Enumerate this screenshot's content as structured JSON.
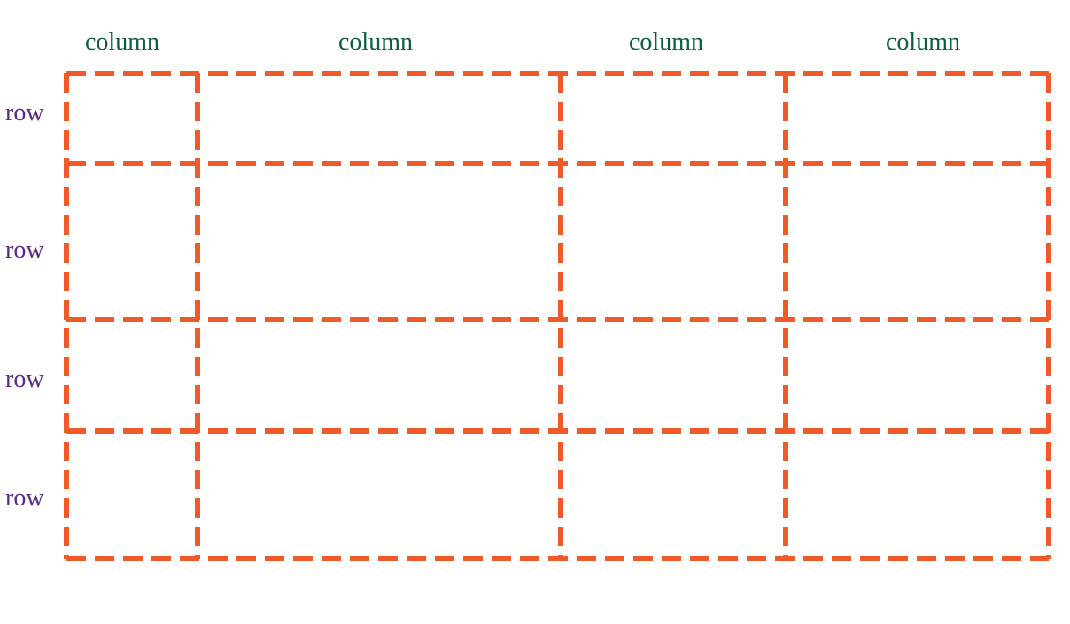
{
  "columns": [
    {
      "label": "column"
    },
    {
      "label": "column"
    },
    {
      "label": "column"
    },
    {
      "label": "column"
    }
  ],
  "rows": [
    {
      "label": "row"
    },
    {
      "label": "row"
    },
    {
      "label": "row"
    },
    {
      "label": "row"
    }
  ],
  "colors": {
    "grid_line": "#f05a28",
    "column_label": "#0f5f3a",
    "row_label": "#5b2a86"
  }
}
